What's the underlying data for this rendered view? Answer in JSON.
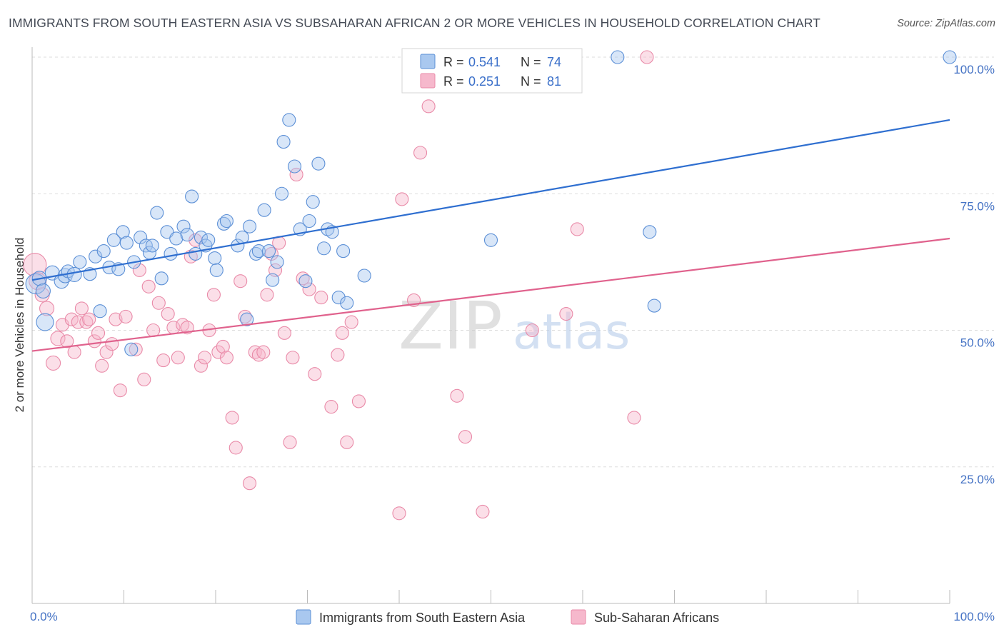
{
  "title": "IMMIGRANTS FROM SOUTH EASTERN ASIA VS SUBSAHARAN AFRICAN 2 OR MORE VEHICLES IN HOUSEHOLD CORRELATION CHART",
  "source": "Source: ZipAtlas.com",
  "watermark": {
    "zip": "ZIP",
    "atlas": "atlas"
  },
  "colors": {
    "blue_fill": "#a9c8ef",
    "blue_stroke": "#5b8fd6",
    "blue_line": "#2f6fd0",
    "pink_fill": "#f6b8cc",
    "pink_stroke": "#e98aa8",
    "pink_line": "#e0628d",
    "grid": "#dddddd",
    "tick_text": "#4472c4"
  },
  "legend": {
    "rows": [
      {
        "r_label": "R =",
        "r_value": "0.541",
        "n_label": "N =",
        "n_value": "74",
        "series": "blue"
      },
      {
        "r_label": "R =",
        "r_value": "0.251",
        "n_label": "N =",
        "n_value": "81",
        "series": "pink"
      }
    ]
  },
  "chart_data": {
    "type": "scatter",
    "title": "IMMIGRANTS FROM SOUTH EASTERN ASIA VS SUBSAHARAN AFRICAN 2 OR MORE VEHICLES IN HOUSEHOLD CORRELATION CHART",
    "xlabel": "",
    "ylabel": "2 or more Vehicles in Household",
    "xlim": [
      0,
      100
    ],
    "ylim": [
      0,
      100
    ],
    "x_tick_labels": [
      "0.0%",
      "100.0%"
    ],
    "y_tick_labels": [
      "25.0%",
      "50.0%",
      "75.0%",
      "100.0%"
    ],
    "y_ticks": [
      25,
      50,
      75,
      100
    ],
    "grid": true,
    "legend_position": "top-center",
    "series": [
      {
        "name": "Immigrants from South Eastern Asia",
        "color": "blue",
        "trend": {
          "x": [
            0,
            100
          ],
          "y": [
            59.2,
            88.5
          ]
        },
        "points": [
          [
            0.4,
            58.5,
            14
          ],
          [
            0.8,
            59.5,
            10
          ],
          [
            1.2,
            57.2,
            10
          ],
          [
            1.4,
            51.5,
            12
          ],
          [
            2.2,
            60.5,
            10
          ],
          [
            3.2,
            59.0,
            10
          ],
          [
            3.6,
            60.0,
            10
          ],
          [
            3.9,
            60.8,
            9
          ],
          [
            4.6,
            60.2,
            10
          ],
          [
            5.2,
            62.5,
            9
          ],
          [
            6.3,
            60.3,
            9
          ],
          [
            6.9,
            63.5,
            9
          ],
          [
            7.4,
            53.5,
            9
          ],
          [
            7.8,
            64.5,
            9
          ],
          [
            8.4,
            61.5,
            9
          ],
          [
            8.9,
            66.5,
            9
          ],
          [
            9.4,
            61.2,
            9
          ],
          [
            9.9,
            68.0,
            9
          ],
          [
            10.3,
            66.0,
            9
          ],
          [
            10.8,
            46.5,
            9
          ],
          [
            11.1,
            62.5,
            9
          ],
          [
            11.8,
            67.0,
            9
          ],
          [
            12.4,
            65.5,
            9
          ],
          [
            12.8,
            64.2,
            9
          ],
          [
            13.1,
            65.5,
            9
          ],
          [
            13.6,
            71.5,
            9
          ],
          [
            14.1,
            59.5,
            9
          ],
          [
            14.7,
            68.0,
            9
          ],
          [
            15.1,
            64.0,
            9
          ],
          [
            15.7,
            66.8,
            9
          ],
          [
            16.5,
            69.0,
            9
          ],
          [
            16.9,
            67.5,
            9
          ],
          [
            17.4,
            74.5,
            9
          ],
          [
            17.8,
            64.0,
            9
          ],
          [
            18.4,
            67.0,
            9
          ],
          [
            18.9,
            65.5,
            9
          ],
          [
            19.2,
            66.5,
            9
          ],
          [
            19.9,
            63.2,
            9
          ],
          [
            20.1,
            61.0,
            9
          ],
          [
            20.9,
            69.5,
            9
          ],
          [
            21.2,
            70.0,
            9
          ],
          [
            22.4,
            65.5,
            9
          ],
          [
            22.9,
            67.0,
            9
          ],
          [
            23.4,
            52.0,
            9
          ],
          [
            23.7,
            69.0,
            9
          ],
          [
            24.4,
            64.0,
            9
          ],
          [
            24.7,
            64.5,
            9
          ],
          [
            25.3,
            72.0,
            9
          ],
          [
            25.8,
            64.5,
            9
          ],
          [
            26.2,
            59.2,
            9
          ],
          [
            26.7,
            62.5,
            9
          ],
          [
            27.2,
            75.0,
            9
          ],
          [
            27.4,
            84.5,
            9
          ],
          [
            28.0,
            88.5,
            9
          ],
          [
            28.6,
            80.0,
            9
          ],
          [
            29.2,
            68.5,
            9
          ],
          [
            29.8,
            59.0,
            9
          ],
          [
            30.2,
            70.0,
            9
          ],
          [
            30.6,
            73.5,
            9
          ],
          [
            31.2,
            80.5,
            9
          ],
          [
            31.8,
            65.0,
            9
          ],
          [
            32.2,
            68.5,
            9
          ],
          [
            32.7,
            68.0,
            9
          ],
          [
            33.4,
            56.0,
            9
          ],
          [
            33.9,
            64.5,
            9
          ],
          [
            34.3,
            55.0,
            9
          ],
          [
            36.2,
            60.0,
            9
          ],
          [
            50.0,
            66.5,
            9
          ],
          [
            63.8,
            100.0,
            9
          ],
          [
            67.3,
            68.0,
            9
          ],
          [
            67.8,
            54.5,
            9
          ],
          [
            100.0,
            100.0,
            9
          ]
        ]
      },
      {
        "name": "Sub-Saharan Africans",
        "color": "pink",
        "trend": {
          "x": [
            0,
            100
          ],
          "y": [
            46.2,
            66.8
          ]
        },
        "points": [
          [
            0.3,
            62.0,
            16
          ],
          [
            0.6,
            59.0,
            12
          ],
          [
            1.1,
            56.5,
            10
          ],
          [
            1.6,
            54.0,
            10
          ],
          [
            2.3,
            44.0,
            10
          ],
          [
            2.8,
            48.5,
            10
          ],
          [
            3.3,
            51.0,
            9
          ],
          [
            3.8,
            48.0,
            9
          ],
          [
            4.3,
            52.0,
            9
          ],
          [
            4.6,
            46.0,
            9
          ],
          [
            5.0,
            51.5,
            9
          ],
          [
            5.4,
            54.0,
            9
          ],
          [
            5.9,
            51.5,
            9
          ],
          [
            6.2,
            52.0,
            9
          ],
          [
            6.8,
            48.0,
            9
          ],
          [
            7.2,
            49.5,
            9
          ],
          [
            7.6,
            43.5,
            9
          ],
          [
            8.1,
            46.0,
            9
          ],
          [
            8.7,
            47.5,
            9
          ],
          [
            9.1,
            52.0,
            9
          ],
          [
            9.6,
            39.0,
            9
          ],
          [
            10.2,
            52.5,
            9
          ],
          [
            11.3,
            46.5,
            9
          ],
          [
            11.7,
            61.0,
            9
          ],
          [
            12.2,
            41.0,
            9
          ],
          [
            12.7,
            58.0,
            9
          ],
          [
            13.2,
            50.0,
            9
          ],
          [
            13.8,
            55.0,
            9
          ],
          [
            14.3,
            44.5,
            9
          ],
          [
            14.8,
            53.0,
            9
          ],
          [
            15.4,
            50.5,
            9
          ],
          [
            15.9,
            45.0,
            9
          ],
          [
            16.4,
            51.0,
            9
          ],
          [
            16.9,
            50.5,
            9
          ],
          [
            17.3,
            63.5,
            9
          ],
          [
            17.8,
            66.5,
            9
          ],
          [
            18.4,
            43.5,
            9
          ],
          [
            18.8,
            45.0,
            9
          ],
          [
            19.3,
            50.0,
            9
          ],
          [
            19.8,
            56.5,
            9
          ],
          [
            20.3,
            46.0,
            9
          ],
          [
            20.8,
            47.0,
            9
          ],
          [
            21.2,
            45.0,
            9
          ],
          [
            21.8,
            34.0,
            9
          ],
          [
            22.2,
            28.5,
            9
          ],
          [
            22.7,
            59.0,
            9
          ],
          [
            23.2,
            52.5,
            9
          ],
          [
            23.7,
            22.0,
            9
          ],
          [
            24.3,
            46.0,
            9
          ],
          [
            24.7,
            45.5,
            9
          ],
          [
            25.2,
            46.0,
            9
          ],
          [
            25.6,
            56.5,
            9
          ],
          [
            26.1,
            64.0,
            9
          ],
          [
            26.5,
            61.0,
            9
          ],
          [
            26.9,
            66.0,
            9
          ],
          [
            27.5,
            49.5,
            9
          ],
          [
            28.1,
            29.5,
            9
          ],
          [
            28.4,
            45.0,
            9
          ],
          [
            28.8,
            78.5,
            9
          ],
          [
            29.5,
            59.5,
            9
          ],
          [
            30.2,
            57.5,
            9
          ],
          [
            30.8,
            42.0,
            9
          ],
          [
            31.5,
            56.0,
            9
          ],
          [
            32.6,
            36.0,
            9
          ],
          [
            33.3,
            45.5,
            9
          ],
          [
            33.8,
            49.5,
            9
          ],
          [
            34.3,
            29.5,
            9
          ],
          [
            34.8,
            51.5,
            9
          ],
          [
            35.6,
            37.0,
            9
          ],
          [
            40.0,
            16.5,
            9
          ],
          [
            40.3,
            74.0,
            9
          ],
          [
            41.6,
            55.5,
            9
          ],
          [
            42.3,
            82.5,
            9
          ],
          [
            43.2,
            91.0,
            9
          ],
          [
            46.3,
            38.0,
            9
          ],
          [
            47.2,
            30.5,
            9
          ],
          [
            49.1,
            16.8,
            9
          ],
          [
            54.5,
            50.0,
            9
          ],
          [
            58.2,
            53.0,
            9
          ],
          [
            59.4,
            68.5,
            9
          ],
          [
            65.6,
            34.0,
            9
          ],
          [
            67.0,
            100.0,
            9
          ]
        ]
      }
    ]
  },
  "bottom_legend": [
    {
      "label": "Immigrants from South Eastern Asia",
      "series": "blue"
    },
    {
      "label": "Sub-Saharan Africans",
      "series": "pink"
    }
  ]
}
